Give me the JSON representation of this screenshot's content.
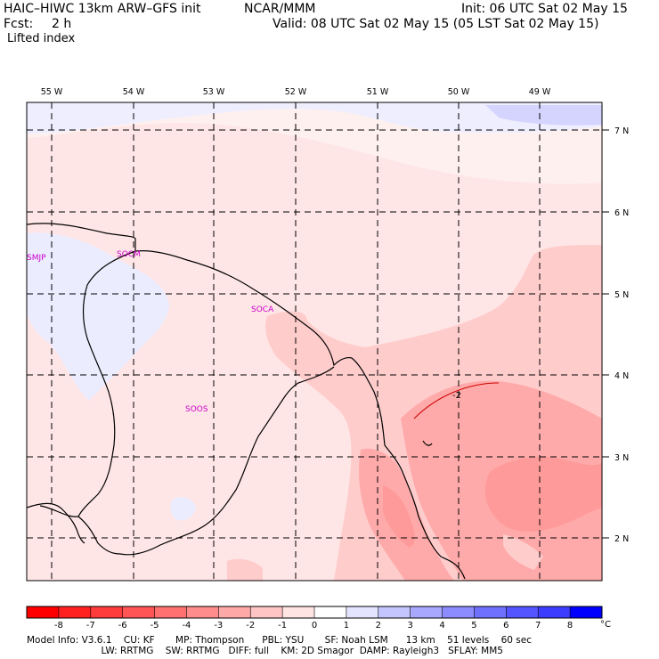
{
  "header": {
    "model_title": "HAIC–HIWC 13km ARW–GFS init",
    "center": "NCAR/MMM",
    "init": "Init: 06 UTC Sat 02 May 15",
    "fcst_label": "Fcst:",
    "fcst_value": "2 h",
    "valid": "Valid: 08 UTC Sat 02 May 15 (05 LST Sat 02 May 15)",
    "field": "Lifted index"
  },
  "map": {
    "lon_labels": [
      "55 W",
      "54 W",
      "53 W",
      "52 W",
      "51 W",
      "50 W",
      "49 W"
    ],
    "lat_labels": [
      "7 N",
      "6 N",
      "5 N",
      "4 N",
      "3 N",
      "2 N"
    ],
    "stations": [
      "SMJP",
      "SOCM",
      "SOCA",
      "SOOS"
    ],
    "contour_label": "-2"
  },
  "colorbar": {
    "ticks": [
      "-8",
      "-7",
      "-6",
      "-5",
      "-4",
      "-3",
      "-2",
      "-1",
      "0",
      "1",
      "2",
      "3",
      "4",
      "5",
      "6",
      "7",
      "8"
    ],
    "unit": "°C",
    "colors": [
      "#ff0000",
      "#ff2020",
      "#ff3c3c",
      "#ff5555",
      "#ff7070",
      "#ff8c8c",
      "#ffa8a8",
      "#ffc4c4",
      "#ffe4e4",
      "#ffffff",
      "#e4e4ff",
      "#c4c4ff",
      "#a8a8ff",
      "#8c8cff",
      "#7070ff",
      "#5555ff",
      "#3c3cff",
      "#0000ff"
    ]
  },
  "model_info": {
    "line1": "Model Info: V3.6.1    CU: KF       MP: Thompson      PBL: YSU       SF: Noah LSM      13 km    51 levels    60 sec",
    "line2": "                         LW: RRTMG    SW: RRTMG   DIFF: full    KM: 2D Smagor  DAMP: Rayleigh3   SFLAY: MM5"
  }
}
